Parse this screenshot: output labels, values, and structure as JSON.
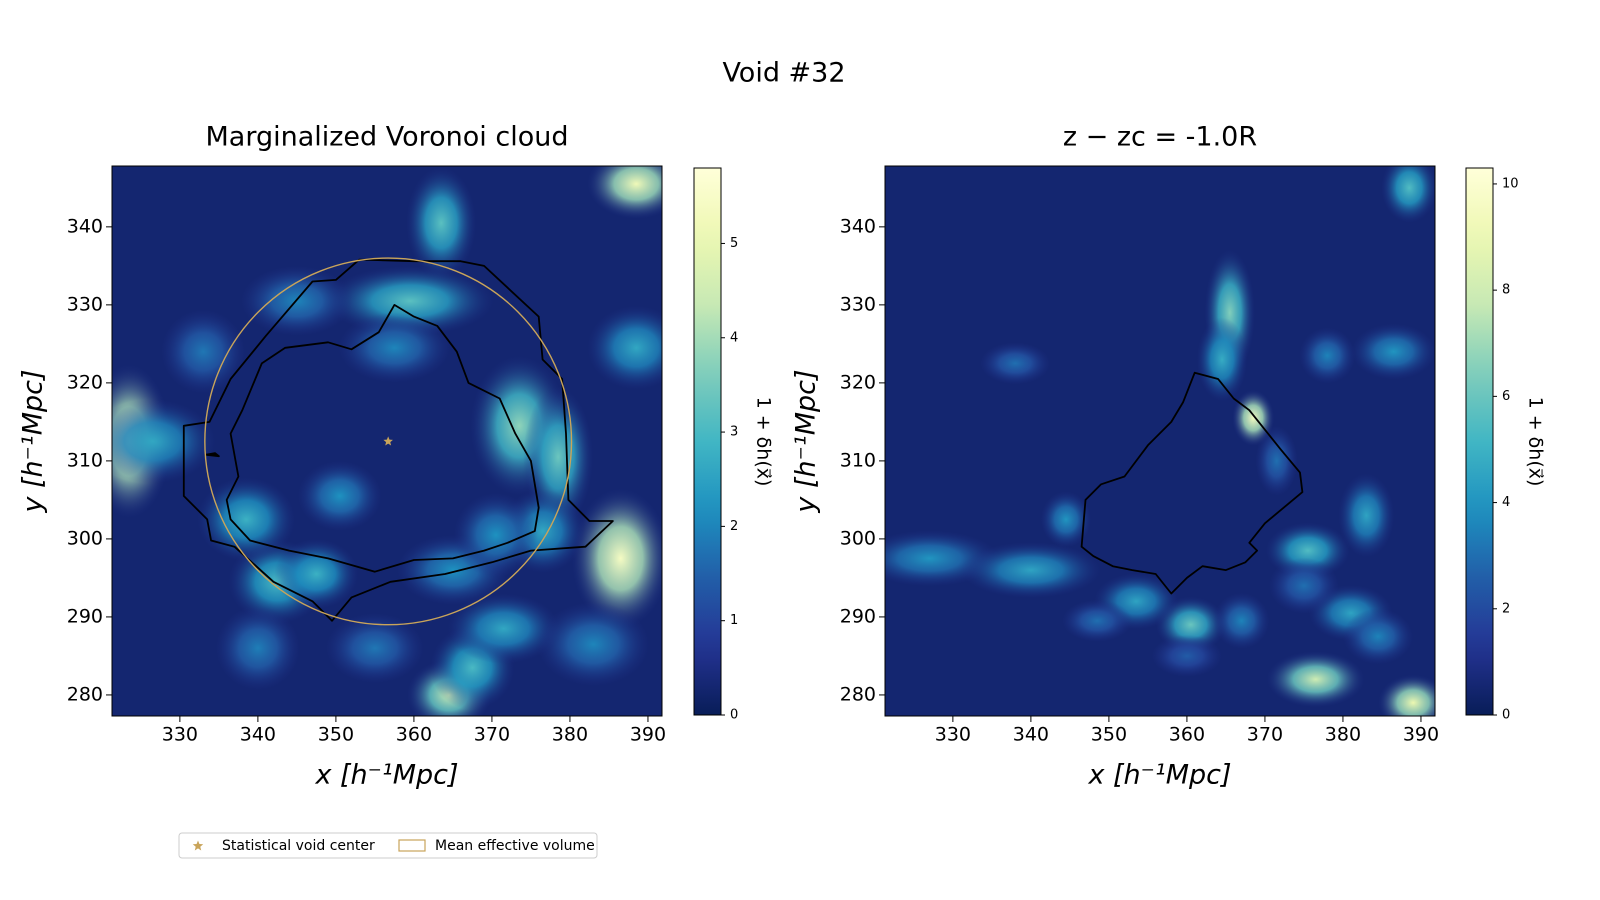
{
  "figure": {
    "suptitle": "Void #32"
  },
  "legend": {
    "items": [
      {
        "label": "Statistical void center",
        "marker": "star",
        "color": "#c9a45a"
      },
      {
        "label": "Mean effective volume",
        "marker": "rect-outline",
        "color": "#c9a45a"
      }
    ]
  },
  "chart_data": [
    {
      "type": "heatmap",
      "title": "Marginalized Voronoi cloud",
      "xlabel": "x [h⁻¹Mpc]",
      "ylabel": "y [h⁻¹Mpc]",
      "xlim": [
        321.3,
        391.8
      ],
      "ylim": [
        277.3,
        347.8
      ],
      "xticks": [
        330,
        340,
        350,
        360,
        370,
        380,
        390
      ],
      "yticks": [
        280,
        290,
        300,
        310,
        320,
        330,
        340
      ],
      "colorbar": {
        "label": "1 + δh(x⃗)",
        "range": [
          0,
          5.8
        ],
        "ticks": [
          0,
          1,
          2,
          3,
          4,
          5
        ],
        "colormap": "YlGnBu"
      },
      "void_center": {
        "x": 356.7,
        "y": 312.5
      },
      "effective_circle": {
        "cx": 356.7,
        "cy": 312.5,
        "r": 23.5
      },
      "contours": [
        [
          [
            330.5,
            314.5
          ],
          [
            333.8,
            315.0
          ],
          [
            336.5,
            320.5
          ],
          [
            341.0,
            326.0
          ],
          [
            347.0,
            333.0
          ],
          [
            350.0,
            333.2
          ],
          [
            353.0,
            335.8
          ],
          [
            360.0,
            335.6
          ],
          [
            366.0,
            335.6
          ],
          [
            369.0,
            335.0
          ],
          [
            376.0,
            328.5
          ],
          [
            376.5,
            323.0
          ],
          [
            379.0,
            320.5
          ],
          [
            379.5,
            313.5
          ],
          [
            379.8,
            305.0
          ],
          [
            382.5,
            302.3
          ],
          [
            385.5,
            302.3
          ],
          [
            382.0,
            299.0
          ],
          [
            375.0,
            298.5
          ],
          [
            370.0,
            297.0
          ],
          [
            364.0,
            295.5
          ],
          [
            357.0,
            294.5
          ],
          [
            352.0,
            292.5
          ],
          [
            349.5,
            289.5
          ],
          [
            347.0,
            292.0
          ],
          [
            342.0,
            294.5
          ],
          [
            337.0,
            299.0
          ],
          [
            334.0,
            299.8
          ],
          [
            333.5,
            302.5
          ],
          [
            330.5,
            305.5
          ],
          [
            330.5,
            314.5
          ]
        ],
        [
          [
            340.5,
            322.5
          ],
          [
            343.5,
            324.5
          ],
          [
            349.0,
            325.2
          ],
          [
            352.0,
            324.3
          ],
          [
            355.5,
            326.5
          ],
          [
            357.5,
            330.0
          ],
          [
            360.0,
            328.5
          ],
          [
            363.0,
            327.3
          ],
          [
            365.5,
            324.0
          ],
          [
            367.0,
            320.0
          ],
          [
            371.0,
            318.0
          ],
          [
            373.0,
            313.5
          ],
          [
            375.0,
            310.0
          ],
          [
            376.0,
            304.0
          ],
          [
            375.5,
            301.0
          ],
          [
            372.0,
            299.5
          ],
          [
            369.0,
            298.5
          ],
          [
            365.0,
            297.5
          ],
          [
            360.0,
            297.3
          ],
          [
            355.0,
            295.8
          ],
          [
            349.0,
            297.5
          ],
          [
            344.0,
            298.5
          ],
          [
            339.0,
            299.8
          ],
          [
            336.5,
            302.5
          ],
          [
            336.0,
            305.0
          ],
          [
            337.5,
            308.0
          ],
          [
            336.5,
            313.5
          ],
          [
            338.0,
            316.5
          ],
          [
            340.5,
            322.5
          ]
        ],
        [
          [
            333.3,
            310.8
          ],
          [
            334.5,
            311.0
          ],
          [
            335.0,
            310.6
          ],
          [
            333.3,
            310.8
          ]
        ]
      ],
      "blobs": [
        {
          "x": 323.5,
          "y": 312.5,
          "v": 5.4,
          "rx": 3.0,
          "ry": 5.5
        },
        {
          "x": 386.5,
          "y": 297.5,
          "v": 5.4,
          "rx": 3.5,
          "ry": 5.0
        },
        {
          "x": 388.5,
          "y": 345.5,
          "v": 5.2,
          "rx": 3.5,
          "ry": 2.5
        },
        {
          "x": 364.5,
          "y": 280.0,
          "v": 4.4,
          "rx": 3.0,
          "ry": 2.5
        },
        {
          "x": 373.5,
          "y": 314.5,
          "v": 3.8,
          "rx": 3.5,
          "ry": 5.0
        },
        {
          "x": 378.5,
          "y": 310.5,
          "v": 3.4,
          "rx": 2.5,
          "ry": 5.0
        },
        {
          "x": 363.5,
          "y": 340.5,
          "v": 3.2,
          "rx": 2.5,
          "ry": 4.0
        },
        {
          "x": 359.5,
          "y": 330.5,
          "v": 3.2,
          "rx": 6.0,
          "ry": 2.5
        },
        {
          "x": 342.5,
          "y": 294.5,
          "v": 3.0,
          "rx": 3.5,
          "ry": 3.0
        },
        {
          "x": 367.5,
          "y": 283.5,
          "v": 3.0,
          "rx": 3.0,
          "ry": 3.0
        },
        {
          "x": 338.5,
          "y": 302.5,
          "v": 2.8,
          "rx": 3.5,
          "ry": 3.0
        },
        {
          "x": 347.5,
          "y": 295.5,
          "v": 2.8,
          "rx": 3.0,
          "ry": 2.5
        },
        {
          "x": 371.5,
          "y": 288.5,
          "v": 2.6,
          "rx": 4.0,
          "ry": 2.5
        },
        {
          "x": 376.5,
          "y": 301.0,
          "v": 2.6,
          "rx": 3.0,
          "ry": 3.0
        },
        {
          "x": 388.5,
          "y": 324.5,
          "v": 2.6,
          "rx": 3.5,
          "ry": 3.0
        },
        {
          "x": 326.5,
          "y": 312.5,
          "v": 2.6,
          "rx": 4.5,
          "ry": 3.0
        },
        {
          "x": 350.5,
          "y": 305.5,
          "v": 2.2,
          "rx": 3.0,
          "ry": 2.5
        },
        {
          "x": 365.0,
          "y": 296.0,
          "v": 2.2,
          "rx": 4.0,
          "ry": 2.5
        },
        {
          "x": 370.5,
          "y": 300.5,
          "v": 2.2,
          "rx": 3.0,
          "ry": 3.0
        },
        {
          "x": 357.5,
          "y": 324.5,
          "v": 2.0,
          "rx": 4.0,
          "ry": 2.5
        },
        {
          "x": 345.0,
          "y": 330.5,
          "v": 2.0,
          "rx": 4.0,
          "ry": 2.5
        },
        {
          "x": 383.0,
          "y": 286.5,
          "v": 2.0,
          "rx": 4.0,
          "ry": 3.0
        },
        {
          "x": 340.0,
          "y": 286.0,
          "v": 1.9,
          "rx": 3.0,
          "ry": 3.0
        },
        {
          "x": 355.0,
          "y": 286.0,
          "v": 1.8,
          "rx": 3.5,
          "ry": 2.5
        },
        {
          "x": 333.0,
          "y": 324.0,
          "v": 1.8,
          "rx": 3.0,
          "ry": 3.0
        }
      ]
    },
    {
      "type": "heatmap",
      "title": "z − zc = -1.0R",
      "xlabel": "x [h⁻¹Mpc]",
      "ylabel": "y [h⁻¹Mpc]",
      "xlim": [
        321.3,
        391.8
      ],
      "ylim": [
        277.3,
        347.8
      ],
      "xticks": [
        330,
        340,
        350,
        360,
        370,
        380,
        390
      ],
      "yticks": [
        280,
        290,
        300,
        310,
        320,
        330,
        340
      ],
      "colorbar": {
        "label": "1 + δh(x⃗)",
        "range": [
          0,
          10.3
        ],
        "ticks": [
          0,
          2,
          4,
          6,
          8,
          10
        ],
        "colormap": "YlGnBu"
      },
      "contours": [
        [
          [
            347.0,
            305.0
          ],
          [
            349.0,
            307.0
          ],
          [
            352.0,
            308.0
          ],
          [
            355.0,
            312.0
          ],
          [
            358.0,
            315.0
          ],
          [
            359.5,
            317.5
          ],
          [
            361.0,
            321.3
          ],
          [
            364.0,
            320.5
          ],
          [
            366.0,
            318.0
          ],
          [
            368.0,
            316.5
          ],
          [
            370.0,
            314.0
          ],
          [
            372.0,
            311.5
          ],
          [
            374.5,
            308.5
          ],
          [
            374.8,
            306.0
          ],
          [
            373.0,
            304.5
          ],
          [
            370.0,
            302.0
          ],
          [
            368.0,
            299.5
          ],
          [
            369.0,
            298.5
          ],
          [
            367.5,
            297.0
          ],
          [
            365.0,
            296.0
          ],
          [
            362.0,
            296.5
          ],
          [
            360.0,
            295.0
          ],
          [
            358.0,
            293.0
          ],
          [
            356.0,
            295.5
          ],
          [
            353.0,
            296.0
          ],
          [
            350.5,
            296.5
          ],
          [
            348.0,
            297.8
          ],
          [
            346.5,
            299.0
          ],
          [
            347.0,
            305.0
          ]
        ]
      ],
      "blobs": [
        {
          "x": 368.5,
          "y": 315.5,
          "v": 9.5,
          "rx": 1.5,
          "ry": 2.0
        },
        {
          "x": 389.0,
          "y": 279.0,
          "v": 9.0,
          "rx": 2.5,
          "ry": 2.0
        },
        {
          "x": 376.5,
          "y": 282.0,
          "v": 8.0,
          "rx": 3.5,
          "ry": 2.0
        },
        {
          "x": 365.5,
          "y": 329.0,
          "v": 6.5,
          "rx": 1.8,
          "ry": 4.5
        },
        {
          "x": 364.5,
          "y": 323.0,
          "v": 4.8,
          "rx": 1.8,
          "ry": 3.0
        },
        {
          "x": 360.5,
          "y": 289.0,
          "v": 6.0,
          "rx": 2.5,
          "ry": 2.0
        },
        {
          "x": 375.5,
          "y": 298.5,
          "v": 5.5,
          "rx": 3.0,
          "ry": 2.0
        },
        {
          "x": 388.5,
          "y": 345.0,
          "v": 5.5,
          "rx": 2.0,
          "ry": 2.5
        },
        {
          "x": 383.0,
          "y": 303.0,
          "v": 4.5,
          "rx": 2.0,
          "ry": 3.0
        },
        {
          "x": 327.0,
          "y": 297.5,
          "v": 4.0,
          "rx": 5.0,
          "ry": 2.0
        },
        {
          "x": 340.0,
          "y": 296.0,
          "v": 4.5,
          "rx": 5.0,
          "ry": 2.0
        },
        {
          "x": 353.5,
          "y": 292.0,
          "v": 4.5,
          "rx": 3.0,
          "ry": 2.0
        },
        {
          "x": 381.0,
          "y": 290.5,
          "v": 4.5,
          "rx": 3.0,
          "ry": 2.0
        },
        {
          "x": 386.5,
          "y": 324.0,
          "v": 4.0,
          "rx": 3.0,
          "ry": 2.0
        },
        {
          "x": 378.0,
          "y": 323.5,
          "v": 3.5,
          "rx": 2.0,
          "ry": 2.0
        },
        {
          "x": 344.5,
          "y": 302.5,
          "v": 4.0,
          "rx": 1.8,
          "ry": 2.0
        },
        {
          "x": 338.0,
          "y": 322.5,
          "v": 3.0,
          "rx": 2.5,
          "ry": 1.5
        },
        {
          "x": 367.0,
          "y": 289.5,
          "v": 3.5,
          "rx": 2.0,
          "ry": 2.0
        },
        {
          "x": 371.5,
          "y": 310.0,
          "v": 3.0,
          "rx": 1.5,
          "ry": 2.5
        },
        {
          "x": 348.5,
          "y": 289.5,
          "v": 3.0,
          "rx": 2.5,
          "ry": 1.5
        },
        {
          "x": 384.5,
          "y": 287.5,
          "v": 3.5,
          "rx": 2.5,
          "ry": 2.0
        },
        {
          "x": 375.0,
          "y": 294.0,
          "v": 3.0,
          "rx": 2.5,
          "ry": 2.0
        },
        {
          "x": 360.0,
          "y": 285.0,
          "v": 2.5,
          "rx": 2.5,
          "ry": 1.5
        }
      ]
    }
  ]
}
